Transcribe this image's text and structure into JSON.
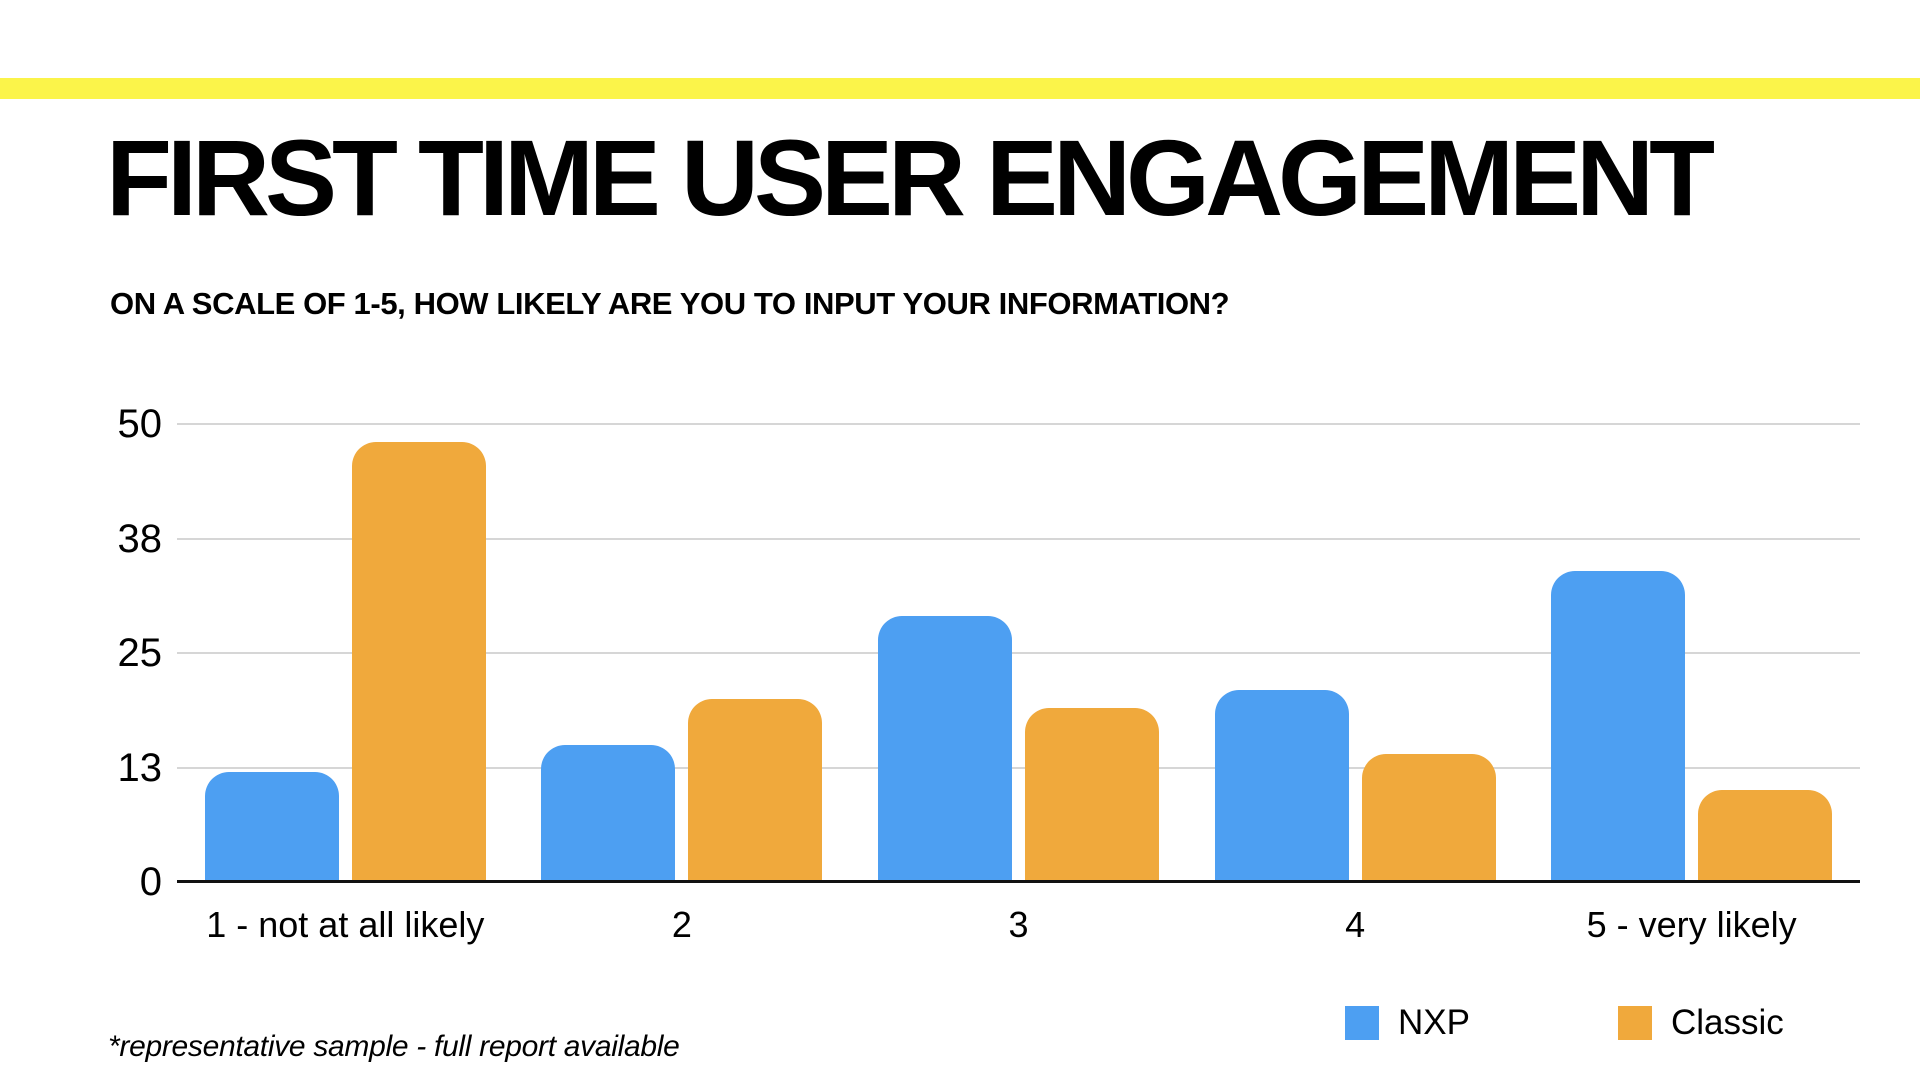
{
  "page": {
    "footnote": "*representative sample - full report available",
    "accent_stripe_color": "#FBF44A",
    "background_color": "#FFFFFF",
    "text_color": "#000000"
  },
  "chart_data": {
    "type": "bar",
    "title": "FIRST TIME USER ENGAGEMENT",
    "subtitle": "ON A SCALE OF 1-5, HOW LIKELY ARE YOU TO INPUT YOUR INFORMATION?",
    "categories": [
      "1 - not at all likely",
      "2",
      "3",
      "4",
      "5 - very likely"
    ],
    "series": [
      {
        "name": "NXP",
        "color": "#4D9FF2",
        "values": [
          12,
          15,
          29,
          21,
          34
        ]
      },
      {
        "name": "Classic",
        "color": "#F0A93C",
        "values": [
          48,
          20,
          19,
          14,
          10
        ]
      }
    ],
    "xlabel": "",
    "ylabel": "",
    "ylim": [
      0,
      50
    ],
    "yticks": [
      {
        "label": "0",
        "position": 0
      },
      {
        "label": "13",
        "position": 0.25
      },
      {
        "label": "25",
        "position": 0.5
      },
      {
        "label": "38",
        "position": 0.75
      },
      {
        "label": "50",
        "position": 1
      }
    ],
    "grid": true,
    "gridline_color": "#D6D6D6",
    "axis_color": "#111111",
    "legend_position": "bottom-right"
  }
}
